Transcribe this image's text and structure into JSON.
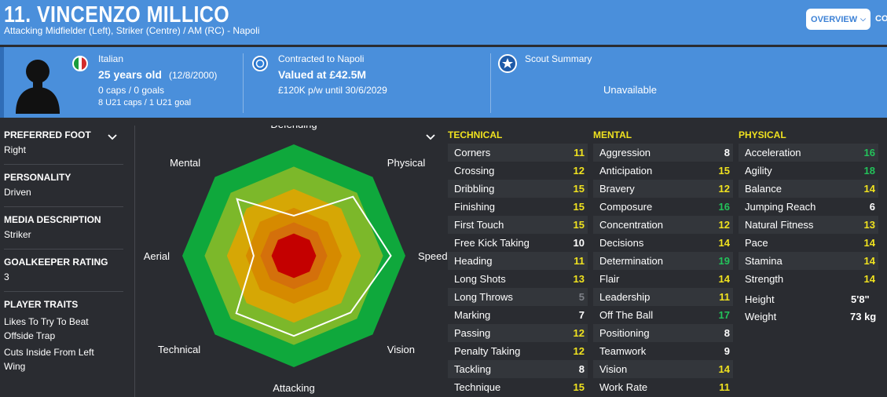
{
  "header": {
    "title": "11. VINCENZO MILLICO",
    "subtitle": "Attacking Midfielder (Left), Striker (Centre) / AM (RC) - Napoli",
    "overview_label": "OVERVIEW",
    "cut_label": "CO"
  },
  "info": {
    "nationality": "Italian",
    "age": "25 years old",
    "dob": "(12/8/2000)",
    "caps": "0 caps / 0 goals",
    "u21": "8 U21 caps / 1 U21 goal",
    "contract_club": "Contracted to Napoli",
    "value": "Valued at £42.5M",
    "wage": "£120K p/w until 30/6/2029",
    "scout_title": "Scout Summary",
    "scout_status": "Unavailable"
  },
  "left_panel": {
    "preferred_foot_label": "PREFERRED FOOT",
    "preferred_foot": "Right",
    "personality_label": "PERSONALITY",
    "personality": "Driven",
    "media_label": "MEDIA DESCRIPTION",
    "media": "Striker",
    "gk_label": "GOALKEEPER RATING",
    "gk_rating": "3",
    "traits_label": "PLAYER TRAITS",
    "trait1_line1": "Likes To Try To Beat",
    "trait1_line2": "Offside Trap",
    "trait2_line1": "Cuts Inside From Left",
    "trait2_line2": "Wing"
  },
  "radar": {
    "axes": [
      "Defending",
      "Physical",
      "Speed",
      "Vision",
      "Attacking",
      "Technical",
      "Aerial",
      "Mental"
    ],
    "values": [
      0.36,
      0.75,
      0.87,
      0.72,
      0.72,
      0.73,
      0.36,
      0.72
    ],
    "ring_colors": [
      "#0fa83c",
      "#7cb82a",
      "#d6a705",
      "#d68a00",
      "#d4700b",
      "#c40000"
    ]
  },
  "technical": {
    "heading": "TECHNICAL",
    "items": [
      {
        "name": "Corners",
        "value": "11"
      },
      {
        "name": "Crossing",
        "value": "12"
      },
      {
        "name": "Dribbling",
        "value": "15"
      },
      {
        "name": "Finishing",
        "value": "15"
      },
      {
        "name": "First Touch",
        "value": "15"
      },
      {
        "name": "Free Kick Taking",
        "value": "10"
      },
      {
        "name": "Heading",
        "value": "11"
      },
      {
        "name": "Long Shots",
        "value": "13"
      },
      {
        "name": "Long Throws",
        "value": "5"
      },
      {
        "name": "Marking",
        "value": "7"
      },
      {
        "name": "Passing",
        "value": "12"
      },
      {
        "name": "Penalty Taking",
        "value": "12"
      },
      {
        "name": "Tackling",
        "value": "8"
      },
      {
        "name": "Technique",
        "value": "15"
      }
    ]
  },
  "mental": {
    "heading": "MENTAL",
    "items": [
      {
        "name": "Aggression",
        "value": "8"
      },
      {
        "name": "Anticipation",
        "value": "15"
      },
      {
        "name": "Bravery",
        "value": "12"
      },
      {
        "name": "Composure",
        "value": "16"
      },
      {
        "name": "Concentration",
        "value": "12"
      },
      {
        "name": "Decisions",
        "value": "14"
      },
      {
        "name": "Determination",
        "value": "19"
      },
      {
        "name": "Flair",
        "value": "14"
      },
      {
        "name": "Leadership",
        "value": "11"
      },
      {
        "name": "Off The Ball",
        "value": "17"
      },
      {
        "name": "Positioning",
        "value": "8"
      },
      {
        "name": "Teamwork",
        "value": "9"
      },
      {
        "name": "Vision",
        "value": "14"
      },
      {
        "name": "Work Rate",
        "value": "11"
      }
    ]
  },
  "physical": {
    "heading": "PHYSICAL",
    "items": [
      {
        "name": "Acceleration",
        "value": "16"
      },
      {
        "name": "Agility",
        "value": "18"
      },
      {
        "name": "Balance",
        "value": "14"
      },
      {
        "name": "Jumping Reach",
        "value": "6"
      },
      {
        "name": "Natural Fitness",
        "value": "13"
      },
      {
        "name": "Pace",
        "value": "14"
      },
      {
        "name": "Stamina",
        "value": "14"
      },
      {
        "name": "Strength",
        "value": "14"
      }
    ],
    "height_label": "Height",
    "height": "5'8\"",
    "weight_label": "Weight",
    "weight": "73 kg"
  },
  "colors": {
    "header_blue": "#4a8fdb",
    "background": "#2a2c31",
    "heading_yellow": "#f0e21f",
    "value_green": "#23c25a"
  }
}
